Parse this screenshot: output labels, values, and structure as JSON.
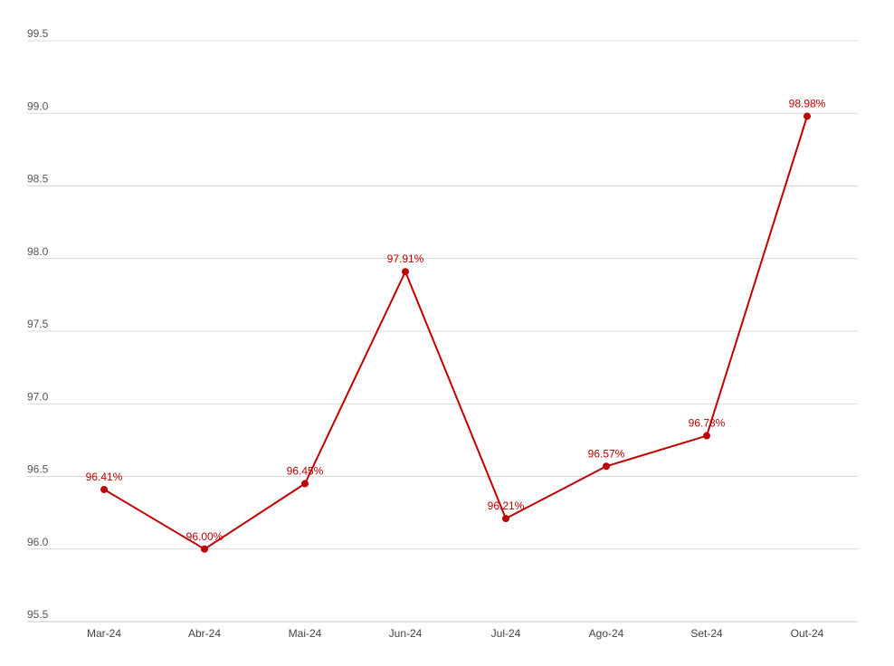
{
  "chart_data": {
    "type": "line",
    "categories": [
      "Mar-24",
      "Abr-24",
      "Mai-24",
      "Jun-24",
      "Jul-24",
      "Ago-24",
      "Set-24",
      "Out-24"
    ],
    "series": [
      {
        "values": [
          96.41,
          96.0,
          96.45,
          97.91,
          96.21,
          96.57,
          96.78,
          98.98
        ],
        "labels": [
          "96.41%",
          "96.00%",
          "96.45%",
          "97.91%",
          "96.21%",
          "96.57%",
          "96.78%",
          "98.98%"
        ],
        "color": "#c00000"
      }
    ],
    "ylim": [
      95.5,
      99.5
    ],
    "yticks": [
      "95.5",
      "96.0",
      "96.5",
      "97.0",
      "97.5",
      "98.0",
      "98.5",
      "99.0",
      "99.5"
    ],
    "grid": true,
    "legend": "none"
  }
}
